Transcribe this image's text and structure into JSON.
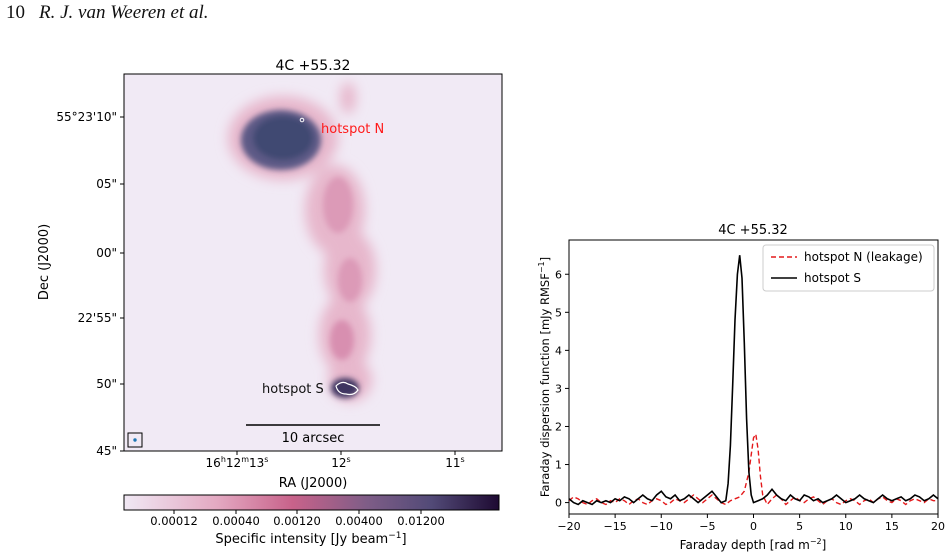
{
  "header": {
    "page_number": "10",
    "authors": "R. J. van Weeren et al."
  },
  "image_panel": {
    "title": "4C +55.32",
    "xlabel": "RA (J2000)",
    "ylabel": "Dec (J2000)",
    "ra_ticks": [
      {
        "pre": "16",
        "h": "h",
        "m1": "12",
        "m": "m",
        "s1": "13",
        "s": "s"
      },
      {
        "pre": "12",
        "s": "s"
      },
      {
        "pre": "11",
        "s": "s"
      }
    ],
    "dec_ticks": [
      "55°23'10\"",
      "05\"",
      "00\"",
      "22'55\"",
      "50\"",
      "45\""
    ],
    "annotations": {
      "hotspot_n": "hotspot N",
      "hotspot_s": "hotspot S"
    },
    "scalebar_label": "10 arcsec",
    "colorbar": {
      "ticks": [
        "0.00012",
        "0.00040",
        "0.00120",
        "0.00400",
        "0.01200"
      ],
      "label_prefix": "Specific intensity [Jy beam",
      "label_sup": "−1",
      "label_suffix": "]",
      "colors": [
        "#f0e8f4",
        "#e3a8c1",
        "#c8628a",
        "#7e5d87",
        "#524a77",
        "#1e0a32"
      ]
    }
  },
  "chart_data": {
    "type": "line",
    "title": "4C +55.32",
    "xlabel_prefix": "Faraday depth [rad m",
    "xlabel_sup": "−2",
    "xlabel_suffix": "]",
    "ylabel_prefix": "Faraday dispersion function [mJy  RMSF",
    "ylabel_sup": "−1",
    "ylabel_suffix": "]",
    "xlim": [
      -20,
      20
    ],
    "ylim": [
      -0.3,
      6.9
    ],
    "xticks": [
      "−20",
      "−15",
      "−10",
      "−5",
      "0",
      "5",
      "10",
      "15",
      "20"
    ],
    "xtick_values": [
      -20,
      -15,
      -10,
      -5,
      0,
      5,
      10,
      15,
      20
    ],
    "yticks": [
      "0",
      "1",
      "2",
      "3",
      "4",
      "5",
      "6"
    ],
    "ytick_values": [
      0,
      1,
      2,
      3,
      4,
      5,
      6
    ],
    "legend_position": "top-right",
    "series": [
      {
        "name": "hotspot N (leakage)",
        "color": "#e41a1c",
        "style": "dashed",
        "x": [
          -20,
          -19.5,
          -19,
          -18.5,
          -18,
          -17.5,
          -17,
          -16.5,
          -16,
          -15.5,
          -15,
          -14.5,
          -14,
          -13.5,
          -13,
          -12.5,
          -12,
          -11.5,
          -11,
          -10.5,
          -10,
          -9.5,
          -9,
          -8.5,
          -8,
          -7.5,
          -7,
          -6.5,
          -6,
          -5.5,
          -5,
          -4.5,
          -4,
          -3.5,
          -3,
          -2.5,
          -2,
          -1.5,
          -1,
          -0.5,
          0,
          0.25,
          0.5,
          0.75,
          1,
          1.5,
          2,
          2.5,
          3,
          3.5,
          4,
          4.5,
          5,
          5.5,
          6,
          6.5,
          7,
          7.5,
          8,
          8.5,
          9,
          9.5,
          10,
          10.5,
          11,
          11.5,
          12,
          12.5,
          13,
          13.5,
          14,
          14.5,
          15,
          15.5,
          16,
          16.5,
          17,
          17.5,
          18,
          18.5,
          19,
          19.5,
          20
        ],
        "y": [
          0.05,
          0.15,
          0.1,
          0.0,
          -0.05,
          0.05,
          0.1,
          0.0,
          -0.05,
          0.05,
          0.0,
          0.1,
          0.05,
          -0.05,
          0.05,
          0.1,
          0.0,
          -0.05,
          0.05,
          0.1,
          0.05,
          -0.05,
          0.0,
          0.1,
          0.05,
          0.0,
          0.1,
          0.2,
          0.1,
          0.0,
          0.1,
          0.2,
          0.1,
          0.0,
          -0.05,
          0.05,
          0.1,
          0.15,
          0.3,
          0.8,
          1.7,
          1.8,
          1.4,
          0.7,
          0.2,
          -0.05,
          0.1,
          0.2,
          0.1,
          -0.05,
          0.05,
          0.15,
          0.05,
          0.0,
          0.1,
          0.15,
          0.05,
          -0.05,
          0.05,
          0.1,
          0.0,
          -0.05,
          0.05,
          0.1,
          0.05,
          -0.05,
          0.05,
          0.1,
          0.0,
          0.1,
          0.15,
          0.05,
          0.0,
          0.1,
          0.05,
          -0.05,
          0.05,
          0.1,
          0.05,
          0.0,
          0.1,
          0.05,
          0.05
        ]
      },
      {
        "name": "hotspot S",
        "color": "#000000",
        "style": "solid",
        "x": [
          -20,
          -19.5,
          -19,
          -18.5,
          -18,
          -17.5,
          -17,
          -16.5,
          -16,
          -15.5,
          -15,
          -14.5,
          -14,
          -13.5,
          -13,
          -12.5,
          -12,
          -11.5,
          -11,
          -10.5,
          -10,
          -9.5,
          -9,
          -8.5,
          -8,
          -7.5,
          -7,
          -6.5,
          -6,
          -5.5,
          -5,
          -4.5,
          -4,
          -3.5,
          -3,
          -2.75,
          -2.5,
          -2.25,
          -2,
          -1.75,
          -1.5,
          -1.25,
          -1,
          -0.75,
          -0.5,
          -0.25,
          0,
          0.5,
          1,
          1.5,
          2,
          2.5,
          3,
          3.5,
          4,
          4.5,
          5,
          5.5,
          6,
          6.5,
          7,
          7.5,
          8,
          8.5,
          9,
          9.5,
          10,
          10.5,
          11,
          11.5,
          12,
          12.5,
          13,
          13.5,
          14,
          14.5,
          15,
          15.5,
          16,
          16.5,
          17,
          17.5,
          18,
          18.5,
          19,
          19.5,
          20
        ],
        "y": [
          0.1,
          0.0,
          -0.05,
          0.05,
          0.0,
          -0.05,
          0.05,
          0.0,
          0.05,
          0.0,
          0.1,
          0.05,
          0.15,
          0.1,
          0.0,
          0.1,
          0.2,
          0.1,
          0.05,
          0.2,
          0.3,
          0.15,
          0.1,
          0.2,
          0.05,
          0.1,
          0.2,
          0.1,
          0.0,
          0.1,
          0.2,
          0.3,
          0.15,
          0.0,
          0.05,
          0.5,
          1.5,
          3.1,
          4.8,
          6.0,
          6.5,
          5.9,
          4.2,
          2.2,
          0.8,
          0.2,
          0.0,
          0.05,
          0.1,
          0.2,
          0.35,
          0.2,
          0.1,
          0.05,
          0.2,
          0.1,
          0.05,
          0.2,
          0.15,
          0.05,
          0.1,
          0.0,
          0.05,
          0.1,
          0.2,
          0.1,
          0.0,
          0.05,
          0.1,
          0.2,
          0.1,
          0.05,
          0.0,
          0.1,
          0.2,
          0.1,
          0.05,
          0.1,
          0.15,
          0.05,
          0.1,
          0.2,
          0.15,
          0.05,
          0.1,
          0.2,
          0.1
        ]
      }
    ]
  }
}
